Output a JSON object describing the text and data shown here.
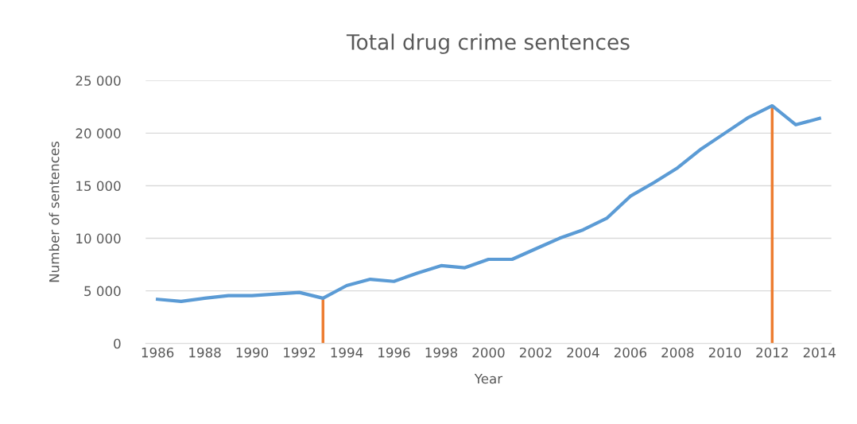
{
  "chart_data": {
    "type": "line",
    "title": "Total drug crime sentences",
    "xlabel": "Year",
    "ylabel": "Number of sentences",
    "x": [
      1986,
      1987,
      1988,
      1989,
      1990,
      1991,
      1992,
      1993,
      1994,
      1995,
      1996,
      1997,
      1998,
      1999,
      2000,
      2001,
      2002,
      2003,
      2004,
      2005,
      2006,
      2007,
      2008,
      2009,
      2010,
      2011,
      2012,
      2013,
      2014
    ],
    "series": [
      {
        "color": "#5b9bd5",
        "values": [
          4200,
          4000,
          4300,
          4550,
          4550,
          4700,
          4850,
          4300,
          5500,
          6100,
          5900,
          6700,
          7400,
          7200,
          8000,
          8000,
          9000,
          10000,
          10800,
          11900,
          14000,
          15300,
          16700,
          18500,
          20000,
          21500,
          22600,
          20800,
          21400
        ]
      }
    ],
    "xlim": [
      1985.5,
      2014.5
    ],
    "xticks": [
      1986,
      1988,
      1990,
      1992,
      1994,
      1996,
      1998,
      2000,
      2002,
      2004,
      2006,
      2008,
      2010,
      2012,
      2014
    ],
    "ylim": [
      0,
      25000
    ],
    "yticks": [
      0,
      {
        "value": 5000,
        "label": "5 000"
      },
      {
        "value": 10000,
        "label": "10 000"
      },
      {
        "value": 15000,
        "label": "15 000"
      },
      {
        "value": 20000,
        "label": "20 000"
      },
      {
        "value": 25000,
        "label": "25 000"
      }
    ],
    "ref_lines": [
      {
        "axis": "x",
        "value": 1993,
        "color": "#ed7d31"
      },
      {
        "axis": "x",
        "value": 2012,
        "color": "#ed7d31"
      }
    ],
    "grid": "y",
    "line_style": "solid",
    "marker": "none"
  }
}
